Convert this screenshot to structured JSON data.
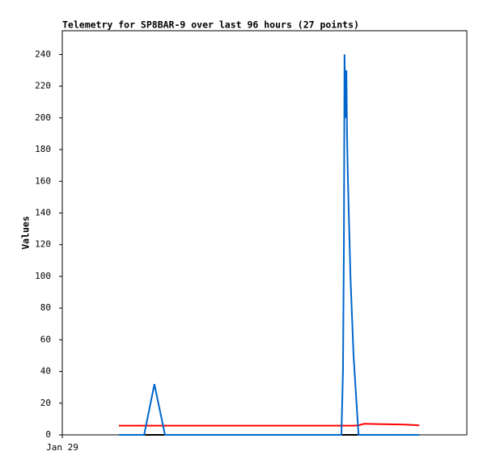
{
  "chart_data": {
    "type": "line",
    "title": "Telemetry for SP8BAR-9 over last 96 hours (27 points)",
    "y_label": "Values",
    "x": [
      18.2,
      21.6,
      26.3,
      29.6,
      33.0,
      39.8,
      47.6,
      55.4,
      63.2,
      71.0,
      78.8,
      86.6,
      89.7,
      90.2,
      90.5,
      90.7,
      91.0,
      91.3,
      91.5,
      91.8,
      92.6,
      93.6,
      95.2,
      97.0,
      100.9,
      110.0,
      114.7
    ],
    "series": [
      {
        "color": "#000000",
        "values": [
          0,
          0,
          0,
          0,
          0,
          0,
          0,
          0,
          0,
          0,
          0,
          0,
          0,
          0,
          0,
          0,
          0,
          0,
          0,
          0,
          0,
          0,
          0,
          0,
          0,
          0,
          0
        ]
      },
      {
        "color": "#ff0000",
        "values": [
          5.8,
          5.8,
          5.8,
          5.8,
          5.8,
          5.8,
          5.8,
          5.8,
          5.8,
          5.8,
          5.8,
          5.8,
          5.8,
          5.8,
          5.8,
          5.8,
          5.8,
          5.8,
          5.8,
          5.8,
          5.8,
          5.8,
          6,
          7,
          6.8,
          6.5,
          6
        ]
      },
      {
        "color": "#0066cc",
        "values": [
          0,
          0,
          0,
          32,
          0,
          0,
          0,
          0,
          0,
          0,
          0,
          0,
          0,
          40,
          120,
          240,
          200,
          230,
          190,
          160,
          100,
          50,
          0,
          0,
          0,
          0,
          0
        ]
      }
    ],
    "xlim": [
      0,
      130
    ],
    "xticks": [
      {
        "value": 0,
        "label": "Jan 29"
      }
    ],
    "ylim": [
      0,
      255
    ],
    "yticks": [
      0,
      20,
      40,
      60,
      80,
      100,
      120,
      140,
      160,
      180,
      200,
      220,
      240
    ]
  }
}
